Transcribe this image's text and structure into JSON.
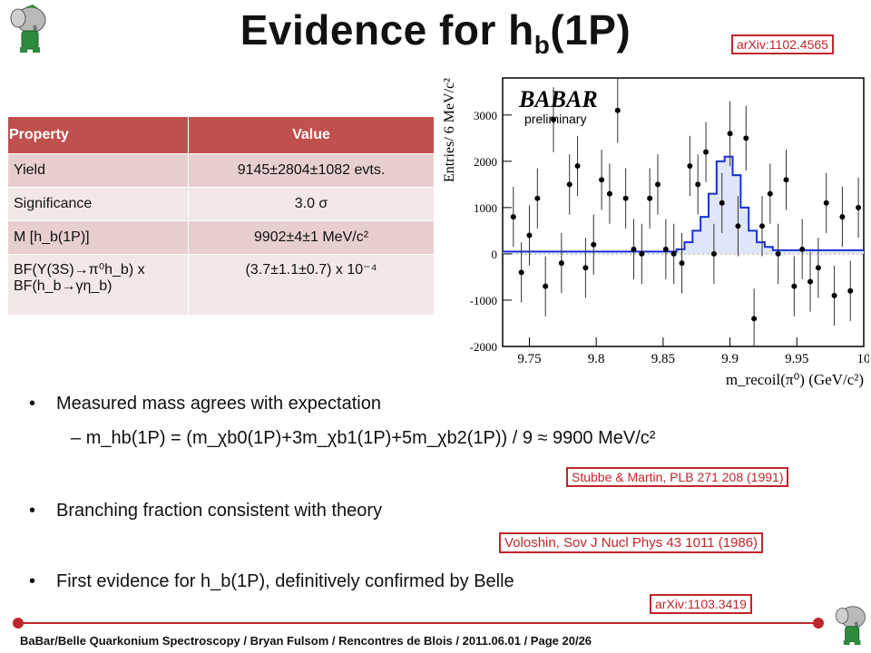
{
  "title": {
    "main": "Evidence for h",
    "sub": "b",
    "tail": "(1P)"
  },
  "refs": {
    "top": "arXiv:1102.4565",
    "stubbe": "Stubbe & Martin, PLB 271 208 (1991)",
    "voloshin": "Voloshin, Sov J Nucl Phys 43 1011 (1986)",
    "bottom": "arXiv:1103.3419"
  },
  "table": {
    "headers": [
      "Property",
      "Value"
    ],
    "rows": [
      {
        "prop": "Yield",
        "value": "9145±2804±1082  evts."
      },
      {
        "prop": "Significance",
        "value": "3.0 σ"
      },
      {
        "prop": "M [h_b(1P)]",
        "value": "9902±4±1 MeV/c²"
      },
      {
        "prop": "BF(Υ(3S)→π⁰h_b) x BF(h_b→γη_b)",
        "value": "(3.7±1.1±0.7) x 10⁻⁴"
      }
    ]
  },
  "bullets": {
    "b1": "Measured mass agrees with expectation",
    "formula": "m_hb(1P) = (m_χb0(1P)+3m_χb1(1P)+5m_χb2(1P)) / 9 ≈ 9900 MeV/c²",
    "b2": "Branching fraction consistent with theory",
    "b3": "First evidence for h_b(1P), definitively confirmed by Belle"
  },
  "footer": "BaBar/Belle Quarkonium Spectroscopy  /  Bryan Fulsom  /  Rencontres de Blois  /  2011.06.01  /  Page 20/26",
  "chart_data": {
    "type": "scatter",
    "logo": "BABAR",
    "logo_sub": "preliminary",
    "xlabel": "m_recoil(π⁰)  (GeV/c²)",
    "ylabel": "Entries/ 6 MeV/c²",
    "xlim": [
      9.73,
      10.0
    ],
    "ylim": [
      -2000,
      3800
    ],
    "xticks": [
      "9.75",
      "9.8",
      "9.85",
      "9.9",
      "9.95",
      "10"
    ],
    "yticks": [
      "-2000",
      "-1000",
      "0",
      "1000",
      "2000",
      "3000"
    ],
    "points": [
      {
        "x": 9.738,
        "y": 800,
        "e": 650
      },
      {
        "x": 9.744,
        "y": -400,
        "e": 650
      },
      {
        "x": 9.75,
        "y": 400,
        "e": 650
      },
      {
        "x": 9.756,
        "y": 1200,
        "e": 650
      },
      {
        "x": 9.762,
        "y": -700,
        "e": 650
      },
      {
        "x": 9.768,
        "y": 2900,
        "e": 700
      },
      {
        "x": 9.774,
        "y": -200,
        "e": 650
      },
      {
        "x": 9.78,
        "y": 1500,
        "e": 650
      },
      {
        "x": 9.786,
        "y": 1900,
        "e": 650
      },
      {
        "x": 9.792,
        "y": -300,
        "e": 650
      },
      {
        "x": 9.798,
        "y": 200,
        "e": 650
      },
      {
        "x": 9.804,
        "y": 1600,
        "e": 650
      },
      {
        "x": 9.81,
        "y": 1300,
        "e": 650
      },
      {
        "x": 9.816,
        "y": 3100,
        "e": 700
      },
      {
        "x": 9.822,
        "y": 1200,
        "e": 650
      },
      {
        "x": 9.828,
        "y": 100,
        "e": 650
      },
      {
        "x": 9.834,
        "y": 0,
        "e": 650
      },
      {
        "x": 9.84,
        "y": 1200,
        "e": 650
      },
      {
        "x": 9.846,
        "y": 1500,
        "e": 650
      },
      {
        "x": 9.852,
        "y": 100,
        "e": 650
      },
      {
        "x": 9.858,
        "y": 0,
        "e": 650
      },
      {
        "x": 9.864,
        "y": -200,
        "e": 650
      },
      {
        "x": 9.87,
        "y": 1900,
        "e": 650
      },
      {
        "x": 9.876,
        "y": 1500,
        "e": 650
      },
      {
        "x": 9.882,
        "y": 2200,
        "e": 650
      },
      {
        "x": 9.888,
        "y": 0,
        "e": 650
      },
      {
        "x": 9.894,
        "y": 1100,
        "e": 650
      },
      {
        "x": 9.9,
        "y": 2600,
        "e": 700
      },
      {
        "x": 9.906,
        "y": 600,
        "e": 650
      },
      {
        "x": 9.912,
        "y": 2500,
        "e": 700
      },
      {
        "x": 9.918,
        "y": -1400,
        "e": 650
      },
      {
        "x": 9.924,
        "y": 600,
        "e": 650
      },
      {
        "x": 9.93,
        "y": 1300,
        "e": 650
      },
      {
        "x": 9.936,
        "y": 0,
        "e": 650
      },
      {
        "x": 9.942,
        "y": 1600,
        "e": 650
      },
      {
        "x": 9.948,
        "y": -700,
        "e": 650
      },
      {
        "x": 9.954,
        "y": 100,
        "e": 650
      },
      {
        "x": 9.96,
        "y": -600,
        "e": 650
      },
      {
        "x": 9.966,
        "y": -300,
        "e": 650
      },
      {
        "x": 9.972,
        "y": 1100,
        "e": 650
      },
      {
        "x": 9.978,
        "y": -900,
        "e": 650
      },
      {
        "x": 9.984,
        "y": 800,
        "e": 650
      },
      {
        "x": 9.99,
        "y": -800,
        "e": 650
      },
      {
        "x": 9.996,
        "y": 1000,
        "e": 650
      }
    ],
    "fit_x": [
      9.73,
      9.85,
      9.86,
      9.866,
      9.872,
      9.878,
      9.884,
      9.89,
      9.896,
      9.902,
      9.908,
      9.914,
      9.92,
      9.926,
      9.932,
      10.0
    ],
    "fit_y": [
      50,
      50,
      100,
      250,
      500,
      800,
      1300,
      2000,
      2100,
      1700,
      1000,
      500,
      250,
      150,
      80,
      50
    ]
  }
}
